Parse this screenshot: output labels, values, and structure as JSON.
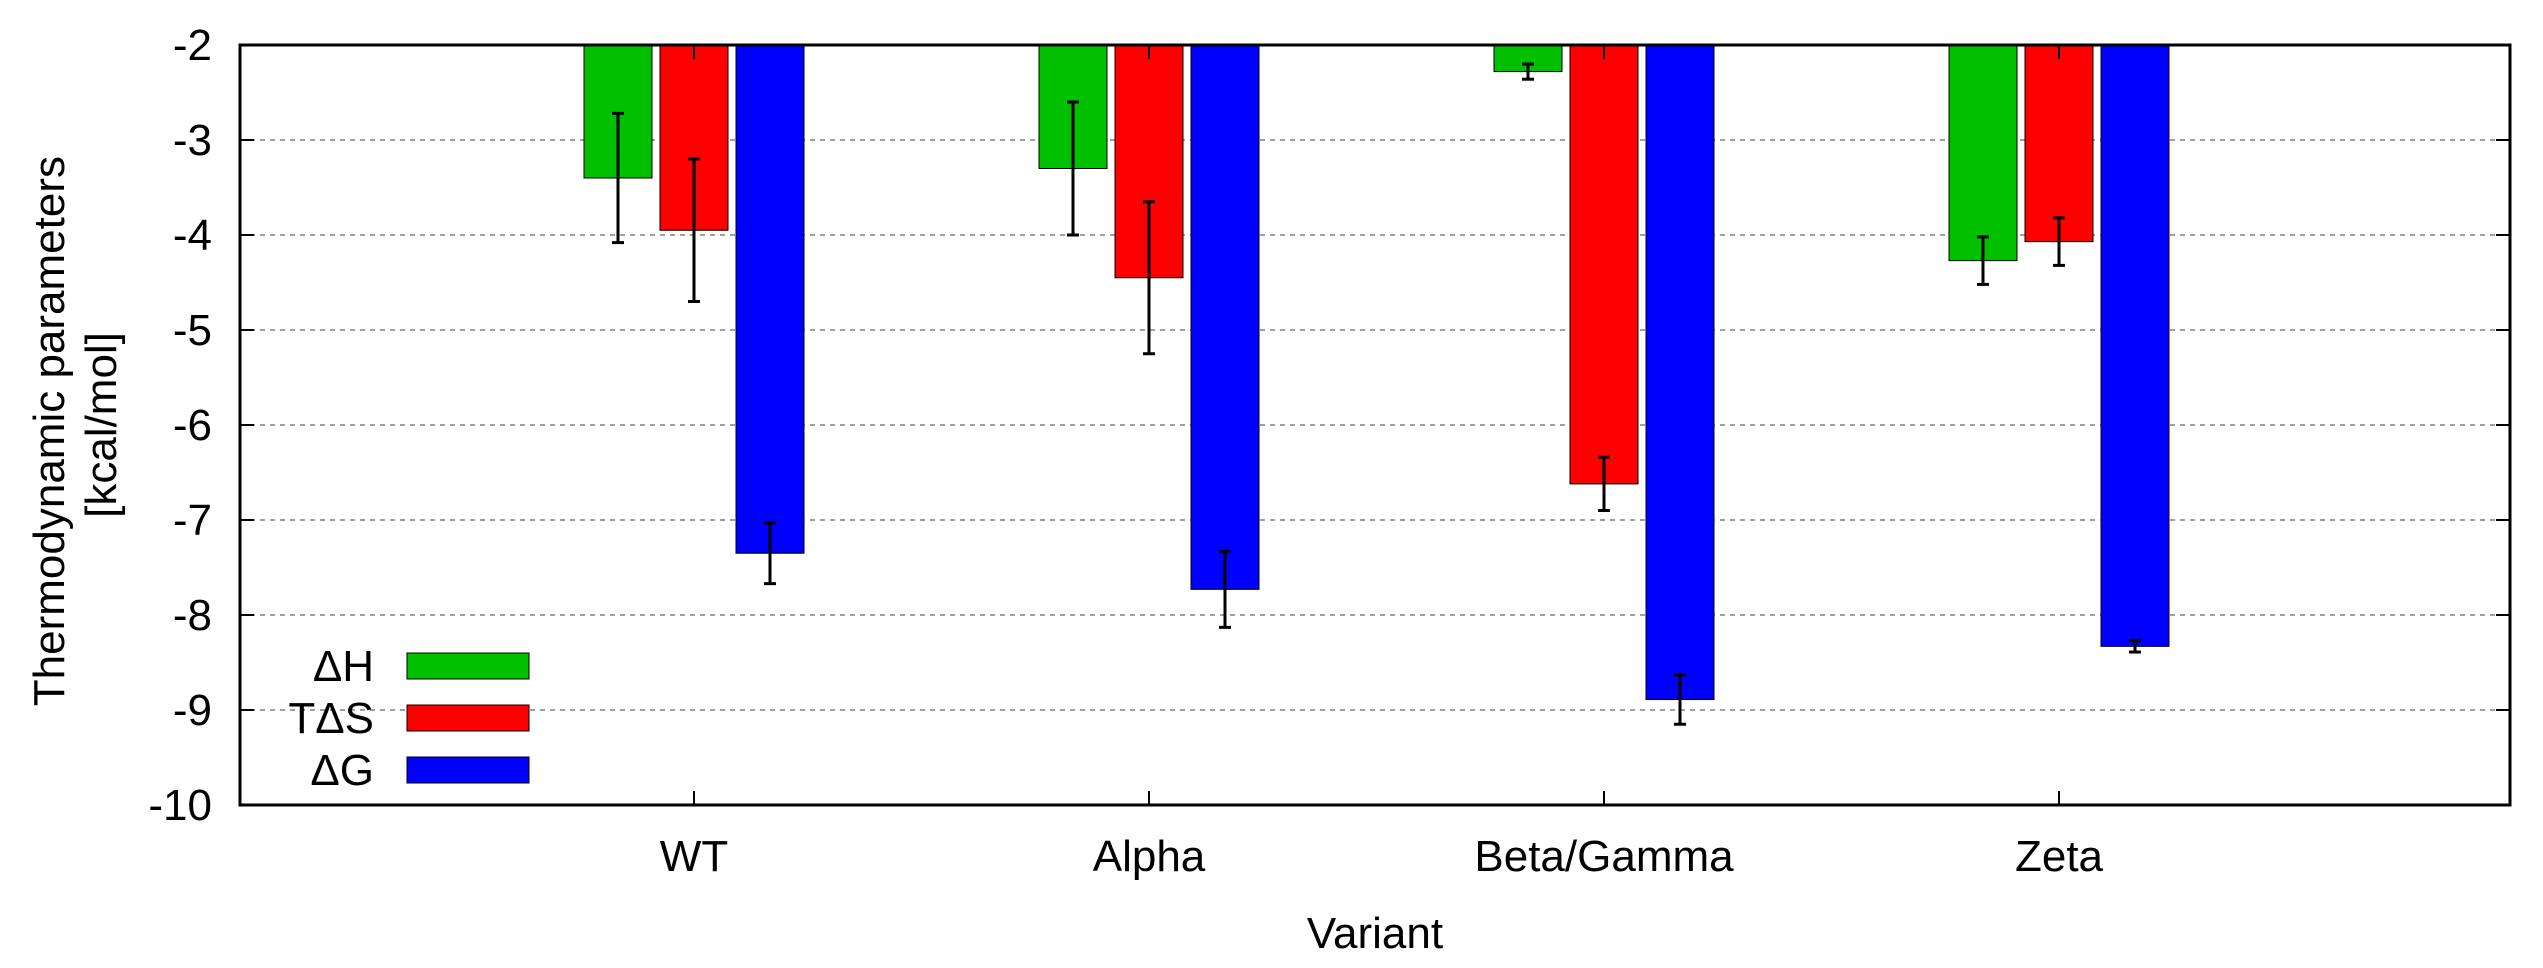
{
  "chart_data": {
    "type": "bar",
    "title": "",
    "xlabel": "Variant",
    "ylabel_lines": [
      "Thermodynamic parameters",
      "[kcal/mol]"
    ],
    "ylim": [
      -10,
      -2
    ],
    "yticks": [
      -2,
      -3,
      -4,
      -5,
      -6,
      -7,
      -8,
      -9,
      -10
    ],
    "ytick_labels": [
      "-2",
      "-3",
      "-4",
      "-5",
      "-6",
      "-7",
      "-8",
      "-9",
      "-10"
    ],
    "grid": "horizontal dashed",
    "categories": [
      "WT",
      "Alpha",
      "Beta/Gamma",
      "Zeta"
    ],
    "series": [
      {
        "name": "ΔH",
        "color": "#00c000",
        "values": [
          -3.4,
          -3.3,
          -2.28,
          -4.27
        ],
        "errors": [
          0.68,
          0.7,
          0.08,
          0.25
        ]
      },
      {
        "name": "TΔS",
        "color": "#ff0000",
        "values": [
          -3.95,
          -4.45,
          -6.62,
          -4.07
        ],
        "errors": [
          0.75,
          0.8,
          0.28,
          0.25
        ]
      },
      {
        "name": "ΔG",
        "color": "#0000ff",
        "values": [
          -7.35,
          -7.73,
          -8.89,
          -8.33
        ],
        "errors": [
          0.32,
          0.4,
          0.26,
          0.06
        ]
      }
    ],
    "legend_position": "bottom-left"
  }
}
